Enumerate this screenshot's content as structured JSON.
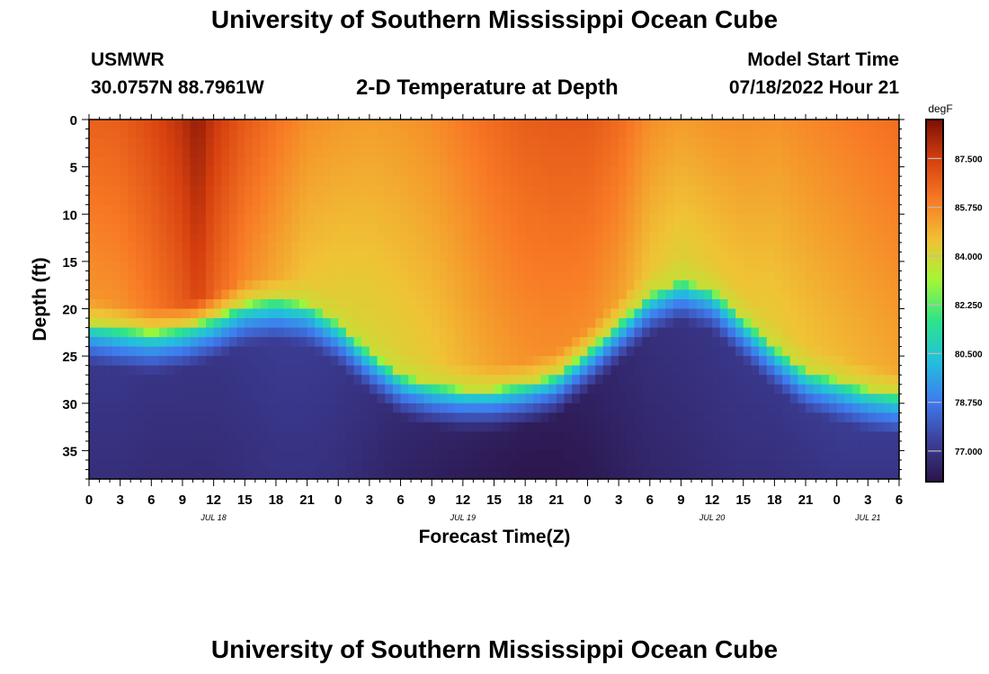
{
  "header": {
    "title": "University of Southern Mississippi Ocean Cube",
    "station_id": "USMWR",
    "coordinates": "30.0757N  88.7961W",
    "plot_title": "2-D Temperature at Depth",
    "model_start_label": "Model Start Time",
    "model_start_value": "07/18/2022 Hour 21",
    "footer_title": "University of Southern Mississippi Ocean Cube"
  },
  "chart_data": {
    "type": "heatmap",
    "title": "2-D Temperature at Depth",
    "xlabel": "Forecast Time(Z)",
    "ylabel": "Depth (ft)",
    "x_tick_labels": [
      "0",
      "3",
      "6",
      "9",
      "12",
      "15",
      "18",
      "21",
      "0",
      "3",
      "6",
      "9",
      "12",
      "15",
      "18",
      "21",
      "0",
      "3",
      "6",
      "9",
      "12",
      "15",
      "18",
      "21",
      "0",
      "3",
      "6"
    ],
    "x_hours": [
      0,
      78
    ],
    "date_labels": [
      {
        "label": "JUL 18",
        "at_hour": 12
      },
      {
        "label": "JUL 19",
        "at_hour": 36
      },
      {
        "label": "JUL 20",
        "at_hour": 60
      },
      {
        "label": "JUL 21",
        "at_hour": 75
      }
    ],
    "y_ticks": [
      0,
      5,
      10,
      15,
      20,
      25,
      30,
      35
    ],
    "ylim": [
      0,
      38
    ],
    "y_inverted": true,
    "colorbar": {
      "unit": "degF",
      "ticks": [
        "87.500",
        "85.750",
        "84.000",
        "82.250",
        "80.500",
        "78.750",
        "77.000"
      ],
      "range": [
        75.9,
        88.9
      ],
      "colors": [
        "#2b1347",
        "#3c3f99",
        "#3f7bef",
        "#23c0dc",
        "#2ee38a",
        "#a3f637",
        "#f0c235",
        "#f87a25",
        "#d6400f",
        "#7b0f05"
      ]
    },
    "time_samples_hours": [
      0,
      3,
      6,
      9,
      10.5,
      12,
      15,
      18,
      21,
      24,
      27,
      30,
      33,
      36,
      39,
      42,
      45,
      48,
      51,
      54,
      57,
      60,
      63,
      66,
      69,
      72,
      75,
      78
    ],
    "surface_temp_degF": [
      86.6,
      86.7,
      87.2,
      87.9,
      88.5,
      87.7,
      86.8,
      86.2,
      85.6,
      85.4,
      85.3,
      85.4,
      85.6,
      86.0,
      86.4,
      86.7,
      86.8,
      86.8,
      86.4,
      85.6,
      85.3,
      85.5,
      85.6,
      85.5,
      85.7,
      85.9,
      86.1,
      86.3
    ],
    "thermocline_depth_ft": [
      21.5,
      22.0,
      22.5,
      22.0,
      21.5,
      21.0,
      19.5,
      19.0,
      19.5,
      21.5,
      24.5,
      27.0,
      28.0,
      28.5,
      28.5,
      28.0,
      27.0,
      24.5,
      21.5,
      18.5,
      17.0,
      18.0,
      21.0,
      24.0,
      26.5,
      27.5,
      28.5,
      29.0
    ],
    "bottom_temp_degF": [
      76.8,
      76.8,
      76.7,
      76.7,
      76.7,
      76.7,
      76.8,
      76.9,
      76.9,
      76.8,
      76.6,
      76.4,
      76.3,
      76.2,
      76.1,
      76.0,
      76.0,
      76.1,
      76.3,
      76.5,
      76.6,
      76.7,
      76.8,
      76.8,
      76.9,
      77.0,
      77.0,
      77.0
    ]
  }
}
